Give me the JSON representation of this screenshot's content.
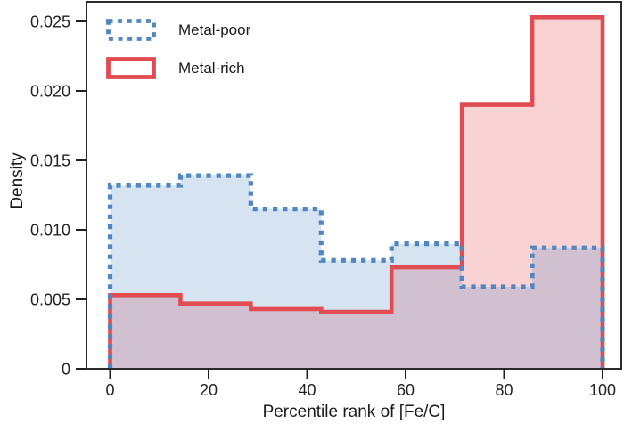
{
  "chart_data": {
    "type": "step-histogram",
    "title": "",
    "xlabel": "Percentile rank of [Fe/C]",
    "ylabel": "Density",
    "xlim": [
      0,
      100
    ],
    "ylim": [
      0,
      0.0264
    ],
    "grid": false,
    "legend_position": "upper-left",
    "background_color": "#ffffff",
    "frame_color": "#2b2a2e",
    "tick_color": "#231f20",
    "tick_label_color": "#231f20",
    "x_tick_values": [
      0,
      20,
      40,
      60,
      80,
      100
    ],
    "x_tick_labels": [
      "0",
      "20",
      "40",
      "60",
      "80",
      "100"
    ],
    "y_tick_values": [
      0,
      0.005,
      0.01,
      0.015,
      0.02,
      0.025
    ],
    "y_tick_labels": [
      "0",
      "0.005",
      "0.010",
      "0.015",
      "0.020",
      "0.025"
    ],
    "bin_edges": [
      0,
      14.29,
      28.57,
      42.86,
      57.14,
      71.43,
      85.71,
      100
    ],
    "series": [
      {
        "name": "Metal-poor",
        "line_style": "dotted",
        "color": "#4e87c1",
        "fill": "rgba(78,135,193,0.23)",
        "values": [
          0.0132,
          0.0139,
          0.0115,
          0.0078,
          0.009,
          0.0059,
          0.0087
        ]
      },
      {
        "name": "Metal-rich",
        "line_style": "solid",
        "color": "#e04c52",
        "fill": "#f9d2d4",
        "values": [
          0.0053,
          0.0047,
          0.0043,
          0.0041,
          0.0073,
          0.019,
          0.0253
        ]
      }
    ]
  },
  "legend": {
    "items": [
      {
        "label": "Metal-poor"
      },
      {
        "label": "Metal-rich"
      }
    ]
  }
}
